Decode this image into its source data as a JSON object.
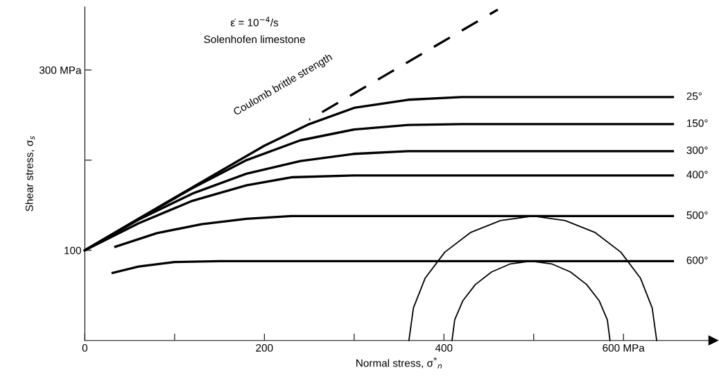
{
  "chart_data": {
    "type": "line",
    "xlabel": "Normal stress, σ$^{*}$$_{n}$",
    "ylabel": "Shear stress, σ$_{s}$",
    "annotations": [
      "ε̇ = 10$^{−4}$/s",
      "Solenhofen limestone"
    ],
    "xlim": [
      0,
      700
    ],
    "ylim": [
      0,
      370
    ],
    "xticks": [
      0,
      {
        "value": 100,
        "label": null
      },
      200,
      {
        "value": 300,
        "label": null
      },
      400,
      {
        "value": 500,
        "label": null
      },
      {
        "value": 600,
        "label": "600 MPa"
      }
    ],
    "yticks": [
      100,
      {
        "value": 200,
        "label": null
      },
      {
        "value": 300,
        "label": "300 MPa"
      }
    ],
    "grid": false,
    "legend": false,
    "marker": "none",
    "series": [
      {
        "name": "Coulomb brittle strength",
        "color": "#000000",
        "line_style": "dashed",
        "x": [
          250,
          460
        ],
        "values": [
          245,
          367
        ]
      },
      {
        "name": "25°",
        "color": "#000000",
        "line_style": "solid",
        "x": [
          0,
          60,
          120,
          200,
          250,
          300,
          360,
          420,
          655
        ],
        "values": [
          100,
          135,
          170,
          216,
          240,
          258,
          267,
          270,
          270
        ]
      },
      {
        "name": "150°",
        "color": "#000000",
        "line_style": "solid",
        "x": [
          0,
          60,
          120,
          180,
          240,
          300,
          360,
          420,
          655
        ],
        "values": [
          100,
          135,
          169,
          200,
          222,
          234,
          239,
          240,
          240
        ]
      },
      {
        "name": "300°",
        "color": "#000000",
        "line_style": "solid",
        "x": [
          0,
          60,
          120,
          180,
          240,
          300,
          360,
          655
        ],
        "values": [
          100,
          134,
          163,
          185,
          199,
          207,
          210,
          210
        ]
      },
      {
        "name": "400°",
        "color": "#000000",
        "line_style": "solid",
        "x": [
          0,
          60,
          120,
          180,
          230,
          300,
          655
        ],
        "values": [
          100,
          130,
          155,
          172,
          181,
          183,
          183
        ]
      },
      {
        "name": "500°",
        "color": "#000000",
        "line_style": "solid",
        "x": [
          34,
          80,
          130,
          180,
          230,
          655
        ],
        "values": [
          104,
          119,
          129,
          135,
          138,
          138
        ]
      },
      {
        "name": "600°",
        "color": "#000000",
        "line_style": "solid",
        "x": [
          31,
          60,
          100,
          150,
          655
        ],
        "values": [
          75,
          82,
          87,
          88,
          88
        ]
      },
      {
        "color": "#000000",
        "line_style": "solid",
        "x": [
          637,
          632,
          619,
          597,
          568,
          535,
          499,
          463,
          430,
          401,
          379,
          366,
          361
        ],
        "values": [
          0,
          36,
          69,
          98,
          120,
          133,
          138,
          133,
          120,
          98,
          69,
          36,
          0
        ]
      },
      {
        "color": "#000000",
        "line_style": "solid",
        "x": [
          585,
          582,
          573,
          559,
          541,
          520,
          497,
          474,
          453,
          435,
          421,
          412,
          409
        ],
        "values": [
          0,
          23,
          44,
          62,
          76,
          85,
          88,
          85,
          76,
          62,
          44,
          23,
          0
        ]
      }
    ]
  }
}
